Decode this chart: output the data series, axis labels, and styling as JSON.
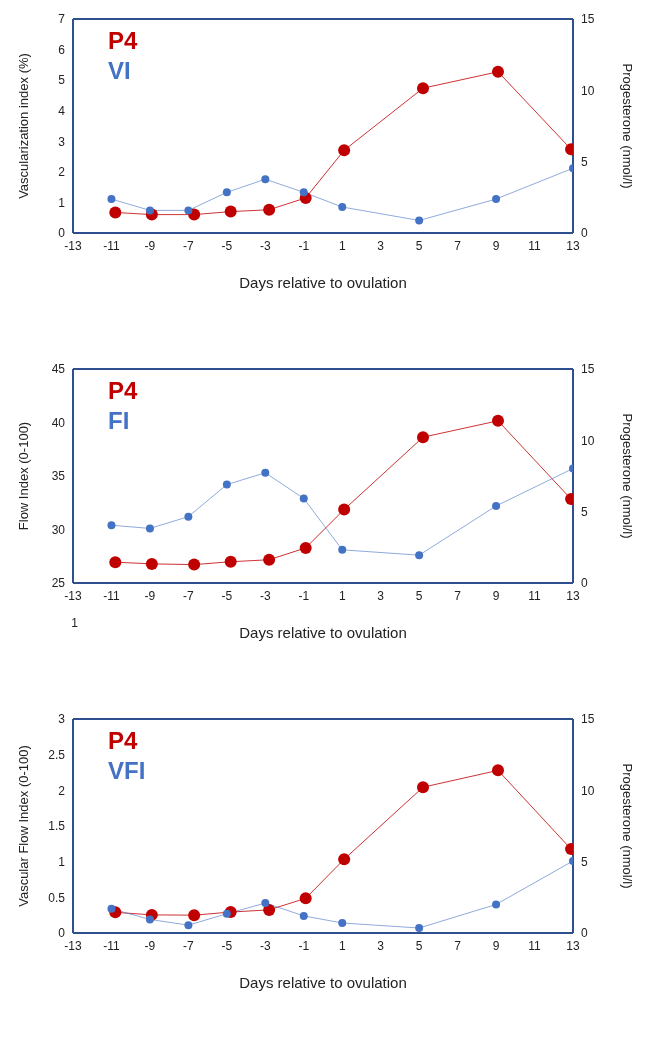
{
  "chart_data": [
    {
      "type": "line",
      "xlabel": "Days relative to ovulation",
      "ylabel": "Vascularization index (%)",
      "y2label": "Progesterone (nmol/l)",
      "xlim": [
        -13,
        13
      ],
      "xticks": [
        -13,
        -11,
        -9,
        -7,
        -5,
        -3,
        -1,
        1,
        3,
        5,
        7,
        9,
        11,
        13
      ],
      "ylim": [
        0,
        7
      ],
      "yticks": [
        0,
        1,
        2,
        3,
        4,
        5,
        6,
        7
      ],
      "y2lim": [
        0,
        15
      ],
      "y2ticks": [
        0,
        5,
        10,
        15
      ],
      "grid": false,
      "legend": "top left",
      "marker": "circle",
      "line_style": "solid",
      "series": [
        {
          "name": "P4",
          "color": "#c00000",
          "axis": "y2",
          "x": [
            -10.8,
            -8.9,
            -6.7,
            -4.8,
            -2.8,
            -0.9,
            1.1,
            5.2,
            9.1,
            12.9
          ],
          "values": [
            1.44,
            1.29,
            1.29,
            1.5,
            1.63,
            2.46,
            5.8,
            10.15,
            11.3,
            5.87
          ]
        },
        {
          "name": "VI",
          "color": "#4472c4",
          "x": [
            -11,
            -9,
            -7,
            -5,
            -3,
            -1,
            1,
            5,
            9,
            13
          ],
          "values": [
            1.11,
            0.74,
            0.74,
            1.33,
            1.76,
            1.33,
            0.85,
            0.41,
            1.11,
            2.12
          ]
        }
      ]
    },
    {
      "type": "line",
      "xlabel": "Days relative to ovulation",
      "ylabel": "Flow Index (0-100)",
      "y2label": "Progesterone (nmol/l)",
      "xlim": [
        -13,
        13
      ],
      "xticks": [
        -13,
        -11,
        -9,
        -7,
        -5,
        -3,
        -1,
        1,
        3,
        5,
        7,
        9,
        11,
        13
      ],
      "ylim": [
        25,
        45
      ],
      "yticks": [
        25,
        30,
        35,
        40,
        45
      ],
      "annotations": [
        "1"
      ],
      "y2lim": [
        0,
        15
      ],
      "y2ticks": [
        0,
        5,
        10,
        15
      ],
      "grid": false,
      "legend": "top left",
      "marker": "circle",
      "line_style": "solid",
      "series": [
        {
          "name": "P4",
          "color": "#c00000",
          "axis": "y2",
          "x": [
            -10.8,
            -8.9,
            -6.7,
            -4.8,
            -2.8,
            -0.9,
            1.1,
            5.2,
            9.1,
            12.9
          ],
          "values": [
            1.46,
            1.34,
            1.29,
            1.49,
            1.63,
            2.46,
            5.15,
            10.22,
            11.37,
            5.88
          ]
        },
        {
          "name": "FI",
          "color": "#4472c4",
          "x": [
            -11,
            -9,
            -7,
            -5,
            -3,
            -1,
            1,
            5,
            9,
            13
          ],
          "values": [
            30.4,
            30.1,
            31.2,
            34.2,
            35.3,
            32.9,
            28.1,
            27.6,
            32.2,
            35.7
          ]
        }
      ]
    },
    {
      "type": "line",
      "xlabel": "Days relative to ovulation",
      "ylabel": "Vascular Flow Index (0-100)",
      "y2label": "Progesterone (nmol/l)",
      "xlim": [
        -13,
        13
      ],
      "xticks": [
        -13,
        -11,
        -9,
        -7,
        -5,
        -3,
        -1,
        1,
        3,
        5,
        7,
        9,
        11,
        13
      ],
      "ylim": [
        0,
        3
      ],
      "yticks": [
        0,
        0.5,
        1,
        1.5,
        2,
        2.5,
        3
      ],
      "y2lim": [
        0,
        15
      ],
      "y2ticks": [
        0,
        5,
        10,
        15
      ],
      "grid": false,
      "legend": "top left",
      "marker": "circle",
      "line_style": "solid",
      "series": [
        {
          "name": "P4",
          "color": "#c00000",
          "axis": "y2",
          "x": [
            -10.8,
            -8.9,
            -6.7,
            -4.8,
            -2.8,
            -0.9,
            1.1,
            5.2,
            9.1,
            12.9
          ],
          "values": [
            1.45,
            1.27,
            1.25,
            1.47,
            1.62,
            2.43,
            5.17,
            10.22,
            11.4,
            5.88
          ]
        },
        {
          "name": "VFI",
          "color": "#4472c4",
          "x": [
            -11,
            -9,
            -7,
            -5,
            -3,
            -1,
            1,
            5,
            9,
            13
          ],
          "values": [
            0.34,
            0.19,
            0.11,
            0.27,
            0.42,
            0.24,
            0.14,
            0.07,
            0.4,
            1.01
          ]
        }
      ]
    }
  ]
}
